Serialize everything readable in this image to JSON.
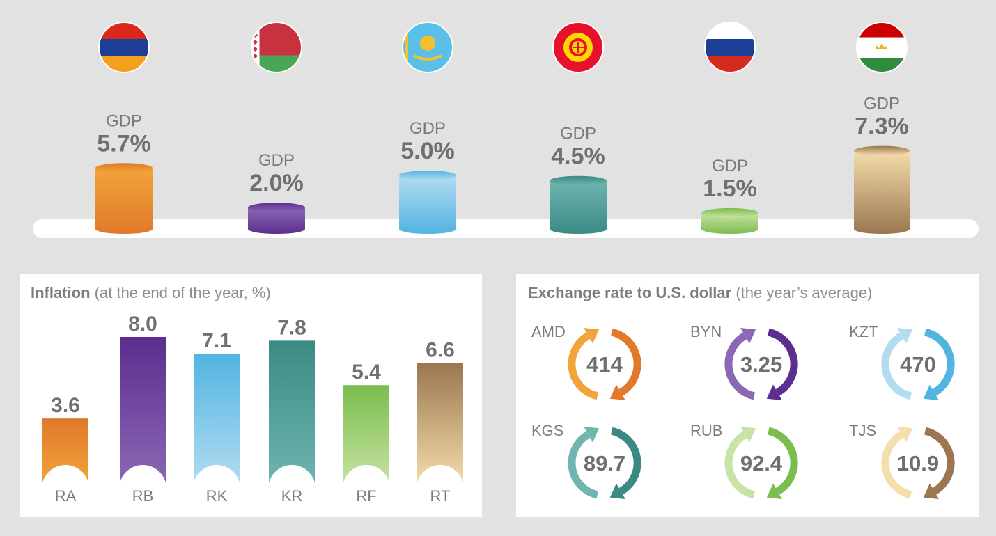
{
  "colors": {
    "orange": [
      "#f2a43a",
      "#e0792a"
    ],
    "purple": [
      "#8b67b4",
      "#5c2e8f"
    ],
    "lightblue": [
      "#b3dcf1",
      "#51b4e1"
    ],
    "teal": [
      "#6fb5b0",
      "#3a8a83"
    ],
    "green": [
      "#c8e3a5",
      "#7bbd4e"
    ],
    "gold": [
      "#f4deaa",
      "#9b7650"
    ]
  },
  "chart_data": [
    {
      "type": "bar",
      "style": "cylinder",
      "categories": [
        "Armenia",
        "Belarus",
        "Kazakhstan",
        "Kyrgyzstan",
        "Russia",
        "Tajikistan"
      ],
      "flag_icons": [
        "flag-armenia-icon",
        "flag-belarus-icon",
        "flag-kazakhstan-icon",
        "flag-kyrgyzstan-icon",
        "flag-russia-icon",
        "flag-tajikistan-icon"
      ],
      "series": [
        {
          "values": [
            5.7,
            2.0,
            5.0,
            4.5,
            1.5,
            7.3
          ],
          "labels": [
            "5.7%",
            "2.0%",
            "5.0%",
            "4.5%",
            "1.5%",
            "7.3%"
          ]
        }
      ],
      "bar_caption": "GDP",
      "colors": [
        "orange",
        "purple",
        "lightblue",
        "teal",
        "green",
        "gold"
      ]
    },
    {
      "type": "bar",
      "title": "Inflation",
      "subtitle": "(at the end of the year, %)",
      "categories": [
        "RA",
        "RB",
        "RK",
        "KR",
        "RF",
        "RT"
      ],
      "values": [
        3.6,
        8.0,
        7.1,
        7.8,
        5.4,
        6.6
      ],
      "labels": [
        "3.6",
        "8.0",
        "7.1",
        "7.8",
        "5.4",
        "6.6"
      ],
      "colors": [
        "orange",
        "purple",
        "lightblue",
        "teal",
        "green",
        "gold"
      ]
    },
    {
      "type": "table",
      "title": "Exchange rate to U.S. dollar",
      "subtitle": "(the year’s average)",
      "currencies": [
        "AMD",
        "BYN",
        "KZT",
        "KGS",
        "RUB",
        "TJS"
      ],
      "values": [
        "414",
        "3.25",
        "470",
        "89.7",
        "92.4",
        "10.9"
      ],
      "colors": [
        "orange",
        "purple",
        "lightblue",
        "teal",
        "green",
        "gold"
      ],
      "icon": "circular-arrows-icon"
    }
  ]
}
